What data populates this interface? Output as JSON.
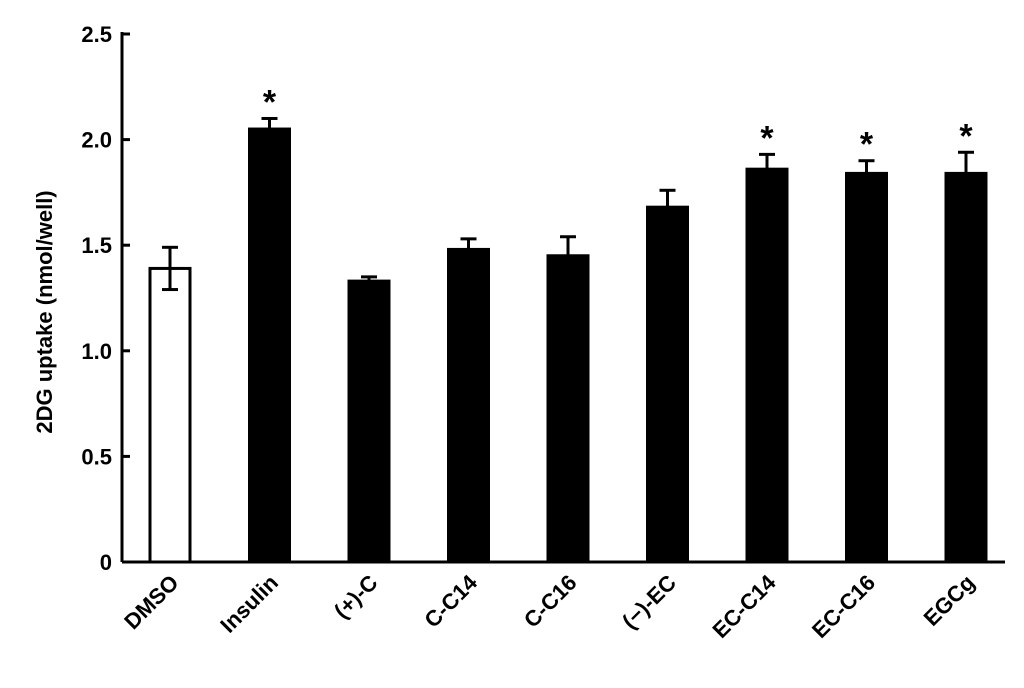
{
  "chart_data": {
    "type": "bar",
    "title": "",
    "xlabel": "",
    "ylabel": "2DG uptake (nmol/well)",
    "ylim": [
      0,
      2.5
    ],
    "yticks": [
      0,
      0.5,
      1.0,
      1.5,
      2.0,
      2.5
    ],
    "ytick_labels": [
      "0",
      "0.5",
      "1.0",
      "1.5",
      "2.0",
      "2.5"
    ],
    "grid": false,
    "legend": "none",
    "categories": [
      "DMSO",
      "Insulin",
      "(+)-C",
      "C-C14",
      "C-C16",
      "(−)-EC",
      "EC-C14",
      "EC-C16",
      "EGCg"
    ],
    "values": [
      1.39,
      2.05,
      1.33,
      1.48,
      1.45,
      1.68,
      1.86,
      1.84,
      1.84
    ],
    "errors": [
      0.1,
      0.05,
      0.02,
      0.05,
      0.09,
      0.08,
      0.07,
      0.06,
      0.1
    ],
    "significance": [
      "",
      "*",
      "",
      "",
      "",
      "",
      "*",
      "*",
      "*"
    ],
    "bar_fill": [
      "#ffffff",
      "#000000",
      "#000000",
      "#000000",
      "#000000",
      "#000000",
      "#000000",
      "#000000",
      "#000000"
    ]
  }
}
